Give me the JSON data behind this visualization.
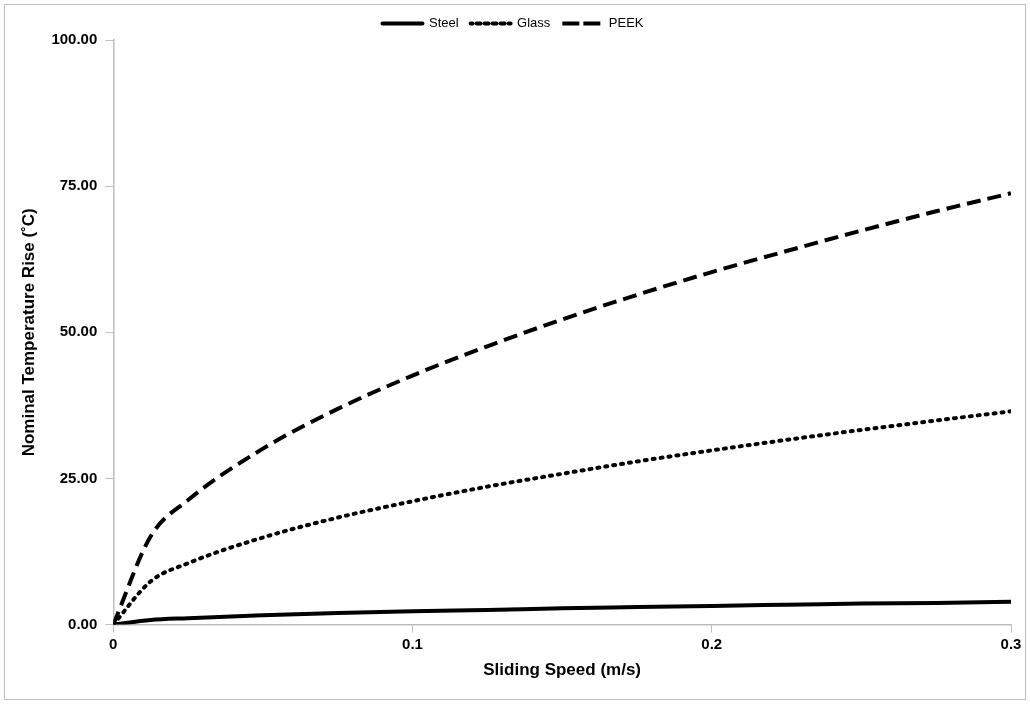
{
  "chart_data": {
    "type": "line",
    "xlabel": "Sliding Speed (m/s)",
    "ylabel": "Nominal Temperature Rise (˚C)",
    "x": [
      0,
      0.0125,
      0.025,
      0.05,
      0.075,
      0.1,
      0.125,
      0.15,
      0.175,
      0.2,
      0.225,
      0.25,
      0.275,
      0.3
    ],
    "series": [
      {
        "name": "Steel",
        "color": "#000000",
        "line_style": "solid",
        "values": [
          0,
          0.8,
          1.1,
          1.6,
          2.0,
          2.3,
          2.5,
          2.8,
          3.0,
          3.2,
          3.4,
          3.6,
          3.7,
          3.9
        ]
      },
      {
        "name": "Glass",
        "color": "#000000",
        "line_style": "dotted",
        "values": [
          0,
          7.4,
          10.5,
          14.9,
          18.3,
          21.1,
          23.6,
          25.8,
          27.9,
          29.8,
          31.6,
          33.3,
          34.9,
          36.5
        ]
      },
      {
        "name": "PEEK",
        "color": "#000000",
        "line_style": "dashed",
        "values": [
          0,
          15.1,
          21.3,
          30.1,
          36.9,
          42.6,
          47.6,
          52.2,
          56.4,
          60.3,
          63.9,
          67.4,
          70.7,
          73.8
        ]
      }
    ],
    "xlim": [
      0,
      0.3
    ],
    "xticks": [
      0,
      0.1,
      0.2,
      0.3
    ],
    "ylim": [
      0,
      100
    ],
    "yticks": [
      {
        "value": 0,
        "label": "0.00"
      },
      {
        "value": 25,
        "label": "25.00"
      },
      {
        "value": 50,
        "label": "50.00"
      },
      {
        "value": 75,
        "label": "75.00"
      },
      {
        "value": 100,
        "label": "100.00"
      }
    ],
    "grid": false,
    "legend": "top",
    "marker": "none"
  }
}
